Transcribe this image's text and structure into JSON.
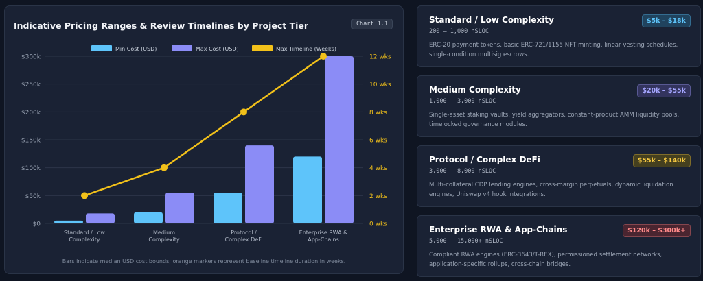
{
  "panel": {
    "title": "Indicative Pricing Ranges & Review Timelines by Project Tier",
    "badge": "Chart 1.1",
    "caption": "Bars indicate median USD cost bounds; orange markers represent baseline timeline duration in weeks."
  },
  "chart_data": {
    "type": "bar",
    "categories": [
      [
        "Standard / Low",
        "Complexity"
      ],
      [
        "Medium",
        "Complexity"
      ],
      [
        "Protocol /",
        "Complex DeFi"
      ],
      [
        "Enterprise RWA &",
        "App-Chains"
      ]
    ],
    "series": [
      {
        "name": "Min Cost (USD)",
        "type": "bar",
        "axis": "left",
        "values": [
          5000,
          20000,
          55000,
          120000
        ],
        "color": "#5ec4fa"
      },
      {
        "name": "Max Cost (USD)",
        "type": "bar",
        "axis": "left",
        "values": [
          18000,
          55000,
          140000,
          300000
        ],
        "color": "#8b8cf6"
      },
      {
        "name": "Max Timeline (Weeks)",
        "type": "line",
        "axis": "right",
        "values": [
          2,
          4,
          8,
          12
        ],
        "color": "#f2c11a"
      }
    ],
    "y_left": {
      "range": [
        0,
        300000
      ],
      "ticks": [
        "$0",
        "$50k",
        "$100k",
        "$150k",
        "$200k",
        "$250k",
        "$300k"
      ]
    },
    "y_right": {
      "range": [
        0,
        12
      ],
      "ticks": [
        "0 wks",
        "2 wks",
        "4 wks",
        "6 wks",
        "8 wks",
        "10 wks",
        "12 wks"
      ]
    },
    "grid": true,
    "legend": "top-center"
  },
  "cards": [
    {
      "title": "Standard / Low Complexity",
      "sloc": "200 – 1,000 nSLOC",
      "price": "$5k – $18k",
      "price_color": "#5ec4fa",
      "price_bg": "#20435e",
      "description": "ERC-20 payment tokens, basic ERC-721/1155 NFT minting, linear vesting schedules, single-condition multisig escrows."
    },
    {
      "title": "Medium Complexity",
      "sloc": "1,000 – 3,000 nSLOC",
      "price": "$20k – $55k",
      "price_color": "#a5a6ff",
      "price_bg": "#33345e",
      "description": "Single-asset staking vaults, yield aggregators, constant-product AMM liquidity pools, timelocked governance modules."
    },
    {
      "title": "Protocol / Complex DeFi",
      "sloc": "3,000 – 8,000 nSLOC",
      "price": "$55k – $140k",
      "price_color": "#f5c842",
      "price_bg": "#45401f",
      "description": "Multi-collateral CDP lending engines, cross-margin perpetuals, dynamic liquidation engines, Uniswap v4 hook integrations."
    },
    {
      "title": "Enterprise RWA & App-Chains",
      "sloc": "5,000 – 15,000+ nSLOC",
      "price": "$120k – $300k+",
      "price_color": "#ff8a8a",
      "price_bg": "#4a2530",
      "description": "Compliant RWA engines (ERC-3643/T-REX), permissioned settlement networks, application-specific rollups, cross-chain bridges."
    }
  ]
}
